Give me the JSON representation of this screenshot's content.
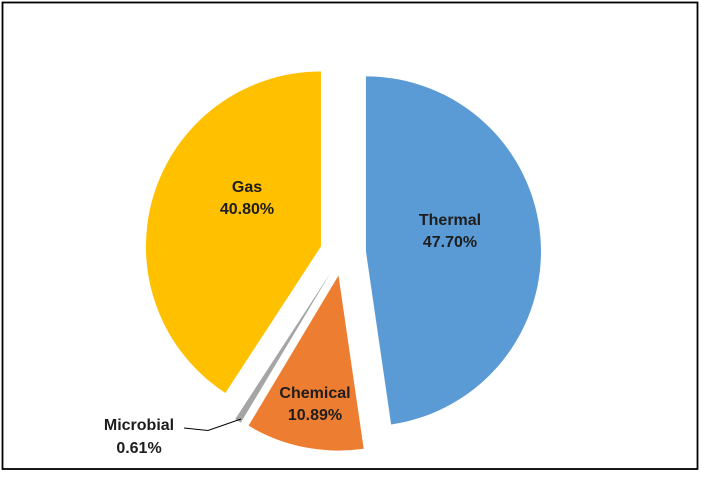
{
  "figure": {
    "background_color": "#FFFFFF",
    "border_color": "#000000",
    "label_text_color": "#1d1d1d"
  },
  "chart_data": {
    "type": "pie",
    "title": "",
    "legend_position": "none",
    "data_label_style": "category name + percentage",
    "direction": "clockwise",
    "start_angle_deg": 0,
    "exploded": true,
    "total": 100.0,
    "categories": [
      "Thermal",
      "Chemical",
      "Microbial",
      "Gas"
    ],
    "values": [
      47.7,
      10.89,
      0.61,
      40.8
    ],
    "slices": [
      {
        "label": "Thermal",
        "value": 47.7,
        "pct_text": "47.70%",
        "color": "#5B9BD5",
        "label_placement": "inside"
      },
      {
        "label": "Chemical",
        "value": 10.89,
        "pct_text": "10.89%",
        "color": "#ED7D31",
        "label_placement": "inside"
      },
      {
        "label": "Microbial",
        "value": 0.61,
        "pct_text": "0.61%",
        "color": "#A5A5A5",
        "label_placement": "outside-with-leader-line"
      },
      {
        "label": "Gas",
        "value": 40.8,
        "pct_text": "40.80%",
        "color": "#FFC000",
        "label_placement": "inside"
      }
    ]
  }
}
